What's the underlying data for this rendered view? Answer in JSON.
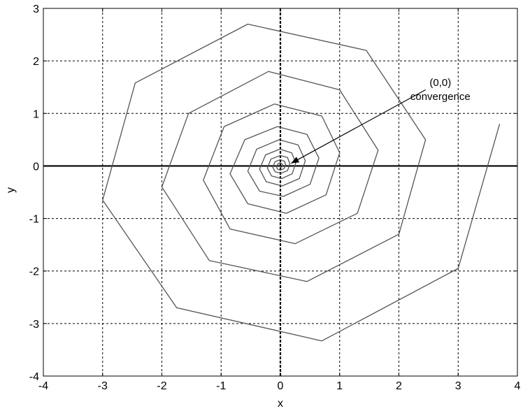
{
  "chart_data": {
    "type": "line",
    "title": "",
    "xlabel": "x",
    "ylabel": "y",
    "xlim": [
      -4,
      4
    ],
    "ylim": [
      -4,
      3
    ],
    "xticks": [
      -4,
      -3,
      -2,
      -1,
      0,
      1,
      2,
      3,
      4
    ],
    "yticks": [
      -4,
      -3,
      -2,
      -1,
      0,
      1,
      2,
      3
    ],
    "grid": true,
    "series": [
      {
        "name": "",
        "color": "#555555",
        "points": [
          [
            3.7,
            0.8
          ],
          [
            3.0,
            -1.95
          ],
          [
            0.7,
            -3.33
          ],
          [
            -1.75,
            -2.7
          ],
          [
            -3.0,
            -0.65
          ],
          [
            -2.45,
            1.58
          ],
          [
            -0.55,
            2.7
          ],
          [
            1.45,
            2.2
          ],
          [
            2.45,
            0.5
          ],
          [
            2.0,
            -1.3
          ],
          [
            0.45,
            -2.2
          ],
          [
            -1.2,
            -1.8
          ],
          [
            -2.0,
            -0.4
          ],
          [
            -1.55,
            1.0
          ],
          [
            -0.2,
            1.8
          ],
          [
            1.0,
            1.45
          ],
          [
            1.65,
            0.3
          ],
          [
            1.3,
            -0.9
          ],
          [
            0.25,
            -1.48
          ],
          [
            -0.85,
            -1.2
          ],
          [
            -1.3,
            -0.27
          ],
          [
            -0.95,
            0.75
          ],
          [
            -0.1,
            1.18
          ],
          [
            0.7,
            0.95
          ],
          [
            1.0,
            0.25
          ],
          [
            0.77,
            -0.55
          ],
          [
            0.1,
            -0.9
          ],
          [
            -0.55,
            -0.72
          ],
          [
            -0.85,
            -0.15
          ],
          [
            -0.6,
            0.5
          ],
          [
            -0.05,
            0.75
          ],
          [
            0.45,
            0.6
          ],
          [
            0.65,
            0.15
          ],
          [
            0.5,
            -0.35
          ],
          [
            0.05,
            -0.58
          ],
          [
            -0.35,
            -0.48
          ],
          [
            -0.55,
            -0.1
          ],
          [
            -0.4,
            0.32
          ],
          [
            -0.02,
            0.5
          ],
          [
            0.3,
            0.4
          ],
          [
            0.42,
            0.1
          ],
          [
            0.32,
            -0.24
          ],
          [
            0.03,
            -0.38
          ],
          [
            -0.24,
            -0.3
          ],
          [
            -0.35,
            -0.06
          ],
          [
            -0.25,
            0.21
          ],
          [
            -0.01,
            0.32
          ],
          [
            0.19,
            0.25
          ],
          [
            0.26,
            0.06
          ],
          [
            0.2,
            -0.15
          ],
          [
            0.02,
            -0.24
          ],
          [
            -0.15,
            -0.19
          ],
          [
            -0.22,
            -0.04
          ],
          [
            -0.16,
            0.13
          ],
          [
            0.0,
            0.2
          ],
          [
            0.12,
            0.16
          ],
          [
            0.16,
            0.04
          ],
          [
            0.12,
            -0.09
          ],
          [
            0.01,
            -0.14
          ],
          [
            -0.09,
            -0.11
          ],
          [
            -0.13,
            -0.02
          ],
          [
            -0.09,
            0.08
          ],
          [
            0.0,
            0.12
          ],
          [
            0.07,
            0.09
          ],
          [
            0.09,
            0.02
          ],
          [
            0.06,
            -0.05
          ],
          [
            0.0,
            -0.08
          ],
          [
            -0.05,
            -0.06
          ],
          [
            -0.07,
            -0.01
          ],
          [
            -0.04,
            0.04
          ],
          [
            0.0,
            0.06
          ],
          [
            0.03,
            0.04
          ],
          [
            0.04,
            0.0
          ],
          [
            0.02,
            -0.02
          ],
          [
            0.0,
            -0.03
          ],
          [
            0.0,
            0.0
          ]
        ]
      }
    ],
    "annotations": [
      {
        "text_lines": [
          "(0,0)",
          "convergence"
        ],
        "text_at": [
          2.7,
          1.28
        ],
        "arrow_from": [
          2.45,
          1.45
        ],
        "arrow_to": [
          0.18,
          0.05
        ]
      }
    ]
  }
}
